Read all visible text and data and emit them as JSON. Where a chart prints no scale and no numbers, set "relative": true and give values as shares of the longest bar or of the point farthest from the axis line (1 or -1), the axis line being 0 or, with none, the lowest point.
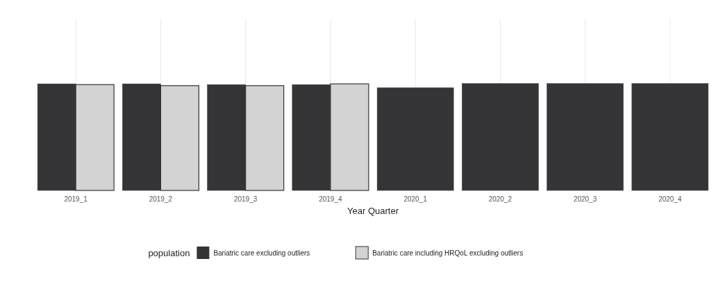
{
  "chart_data": {
    "type": "bar",
    "relative": true,
    "xlabel": "Year Quarter",
    "legend_title": "population",
    "categories": [
      "2019_1",
      "2019_2",
      "2019_3",
      "2019_4",
      "2020_1",
      "2020_2",
      "2020_3",
      "2020_4"
    ],
    "series": [
      {
        "name": "Bariatric care excluding outliers",
        "color": "#353537",
        "values": [
          0.997,
          0.997,
          0.99,
          0.99,
          0.96,
          1,
          1,
          1
        ]
      },
      {
        "name": "Bariatric care including HRQoL excluding outliers",
        "color": "#d3d3d3",
        "values": [
          0.99,
          0.98,
          0.98,
          0.997,
          null,
          null,
          null,
          null
        ]
      }
    ],
    "grid": "x",
    "legend": "bottom"
  }
}
